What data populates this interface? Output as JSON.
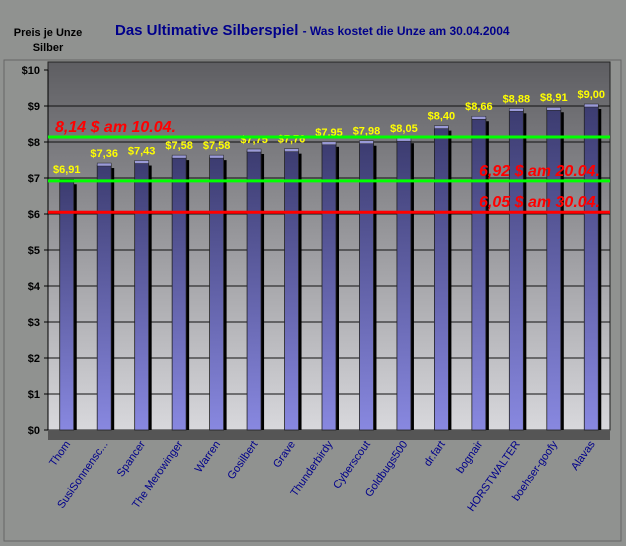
{
  "chart_data": {
    "type": "bar",
    "title": "Das Ultimative Silberspiel",
    "subtitle": "- Was kostet die Unze am 30.04.2004",
    "ylabel": "Preis je Unze Silber",
    "ylim": [
      0,
      10
    ],
    "yticks": [
      "$0",
      "$1",
      "$2",
      "$3",
      "$4",
      "$5",
      "$6",
      "$7",
      "$8",
      "$9",
      "$10"
    ],
    "grid": true,
    "categories": [
      "Thom",
      "SusiSonnensc...",
      "Spancer",
      "The Merowinger",
      "Warren",
      "Gosilbert",
      "Grave",
      "Thunderbirdy",
      "Cyberscout",
      "Goldbugs500",
      "dr.fart",
      "bognair",
      "HORSTWALTER",
      "boehser-goofy",
      "Alavas"
    ],
    "values": [
      6.91,
      7.36,
      7.43,
      7.58,
      7.58,
      7.75,
      7.76,
      7.95,
      7.98,
      8.05,
      8.4,
      8.66,
      8.88,
      8.91,
      9.0
    ],
    "data_labels": [
      "$6,91",
      "$7,36",
      "$7,43",
      "$7,58",
      "$7,58",
      "$7,75",
      "$7,76",
      "$7,95",
      "$7,98",
      "$8,05",
      "$8,40",
      "$8,66",
      "$8,88",
      "$8,91",
      "$9,00"
    ],
    "reference_lines": [
      {
        "value": 8.14,
        "label": "8,14 $ am 10.04.",
        "color": "#00ff00",
        "label_color": "#ff0000"
      },
      {
        "value": 6.92,
        "label": "6,92 $ am 20.04.",
        "color": "#00ff00",
        "label_color": "#ff0000"
      },
      {
        "value": 6.05,
        "label": "6,05 $ am 30.04.",
        "color": "#ff0000",
        "label_color": "#ff0000"
      }
    ],
    "colors": {
      "bar": "#5a5aa0",
      "data_label": "#ffff00",
      "category_label": "#00008b"
    }
  }
}
